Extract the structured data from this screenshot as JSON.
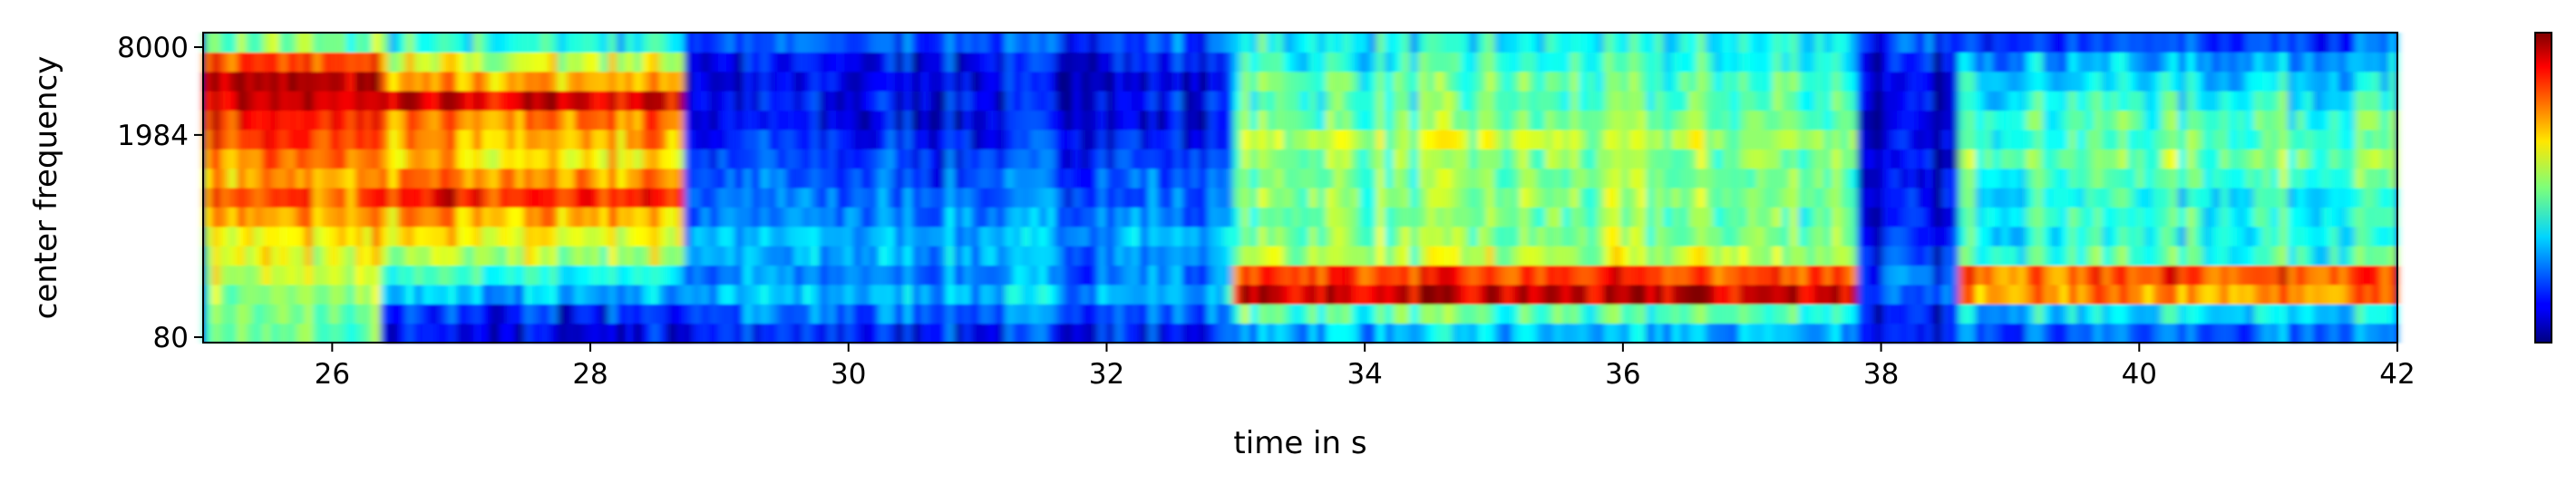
{
  "chart_data": {
    "type": "heatmap",
    "title": "",
    "xlabel": "time in s",
    "ylabel": "center frequency",
    "xlim": [
      25,
      42
    ],
    "x_ticks": [
      "26",
      "28",
      "30",
      "32",
      "34",
      "36",
      "38",
      "40",
      "42"
    ],
    "x_tick_values": [
      26,
      28,
      30,
      32,
      34,
      36,
      38,
      40,
      42
    ],
    "y_ticks": [
      "8000",
      "1984",
      "80"
    ],
    "y_tick_values": [
      8000,
      1984,
      80
    ],
    "y_scale": "log",
    "colormap": "jet",
    "colorbar": true,
    "grid": false,
    "frequency_bands": 16,
    "segments": [
      {
        "start": 25.0,
        "end": 26.4,
        "profile": [
          0.45,
          0.48,
          0.5,
          0.55,
          0.6,
          0.65,
          0.72,
          0.78,
          0.7,
          0.75,
          0.8,
          0.85,
          0.9,
          0.95,
          0.8,
          0.5
        ]
      },
      {
        "start": 26.4,
        "end": 28.7,
        "profile": [
          0.1,
          0.15,
          0.28,
          0.4,
          0.55,
          0.62,
          0.7,
          0.85,
          0.75,
          0.65,
          0.72,
          0.75,
          0.9,
          0.72,
          0.58,
          0.4
        ]
      },
      {
        "start": 28.7,
        "end": 33.0,
        "profile": [
          0.15,
          0.22,
          0.3,
          0.25,
          0.28,
          0.3,
          0.25,
          0.22,
          0.2,
          0.18,
          0.15,
          0.1,
          0.12,
          0.1,
          0.12,
          0.2
        ]
      },
      {
        "start": 33.0,
        "end": 37.8,
        "profile": [
          0.3,
          0.45,
          0.92,
          0.82,
          0.55,
          0.5,
          0.48,
          0.5,
          0.48,
          0.5,
          0.55,
          0.48,
          0.45,
          0.45,
          0.4,
          0.38
        ]
      },
      {
        "start": 37.8,
        "end": 38.6,
        "profile": [
          0.1,
          0.12,
          0.18,
          0.18,
          0.15,
          0.12,
          0.1,
          0.1,
          0.08,
          0.08,
          0.08,
          0.06,
          0.06,
          0.08,
          0.1,
          0.15
        ]
      },
      {
        "start": 38.6,
        "end": 42.0,
        "profile": [
          0.25,
          0.35,
          0.75,
          0.8,
          0.45,
          0.4,
          0.42,
          0.4,
          0.45,
          0.5,
          0.45,
          0.45,
          0.4,
          0.35,
          0.3,
          0.2
        ]
      }
    ]
  }
}
